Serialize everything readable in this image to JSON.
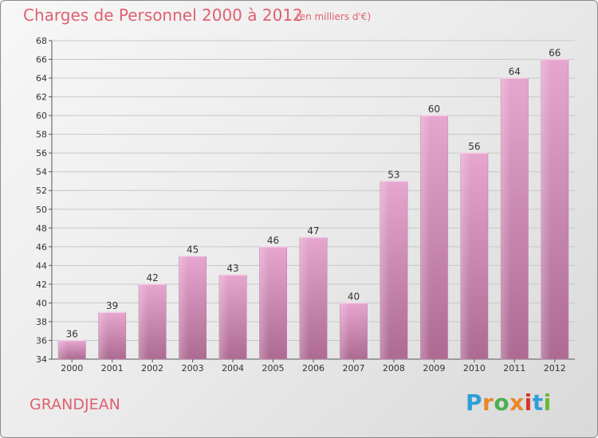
{
  "header": {
    "title": "Charges de Personnel 2000 à 2012",
    "subtitle": "(en milliers d'€)"
  },
  "footer": {
    "commune": "GRANDJEAN",
    "logo_text": "Proxiti",
    "logo_colors": [
      "#2e9fd8",
      "#e8872a",
      "#4caf50",
      "#e8872a",
      "#d9342b",
      "#2e9fd8",
      "#6bb93a"
    ]
  },
  "chart_data": {
    "type": "bar",
    "title": "Charges de Personnel 2000 à 2012",
    "subtitle": "(en milliers d'€)",
    "categories": [
      "2000",
      "2001",
      "2002",
      "2003",
      "2004",
      "2005",
      "2006",
      "2007",
      "2008",
      "2009",
      "2010",
      "2011",
      "2012"
    ],
    "values": [
      36,
      39,
      42,
      45,
      43,
      46,
      47,
      40,
      53,
      60,
      56,
      64,
      66
    ],
    "ylim": [
      34,
      68
    ],
    "yticks": [
      34,
      36,
      38,
      40,
      42,
      44,
      46,
      48,
      50,
      52,
      54,
      56,
      58,
      60,
      62,
      64,
      66,
      68
    ],
    "grid": true,
    "bar_color": "#cc7fae",
    "xlabel": "",
    "ylabel": ""
  }
}
